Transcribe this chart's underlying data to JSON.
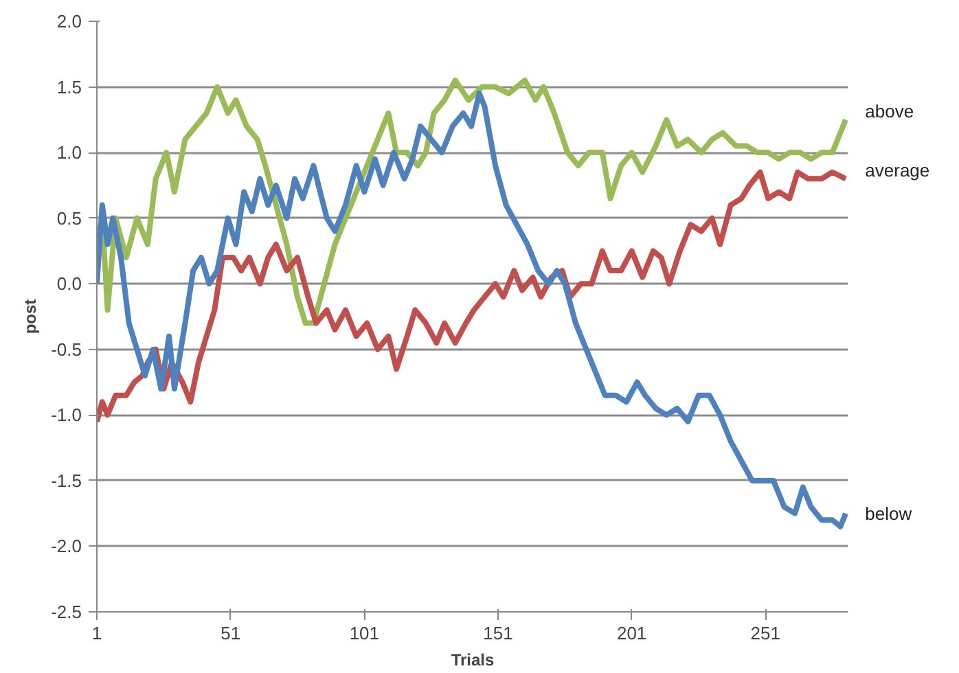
{
  "chart_data": {
    "type": "line",
    "xlabel": "Trials",
    "ylabel": "post",
    "xlim": [
      1,
      282
    ],
    "xticks": [
      1,
      51,
      101,
      151,
      201,
      251
    ],
    "ylim": [
      -2.5,
      2.0
    ],
    "yticks": [
      {
        "value": -2.5,
        "label": "-2.5"
      },
      {
        "value": -2.0,
        "label": "-2.0"
      },
      {
        "value": -1.5,
        "label": "-1.5"
      },
      {
        "value": -1.0,
        "label": "-1.0"
      },
      {
        "value": -0.5,
        "label": "-0.5"
      },
      {
        "value": 0.0,
        "label": "0.0"
      },
      {
        "value": 0.5,
        "label": "0.5"
      },
      {
        "value": 1.0,
        "label": "1.0"
      },
      {
        "value": 1.5,
        "label": "1.5"
      },
      {
        "value": 2.0,
        "label": "2.0"
      }
    ],
    "grid": "y",
    "legend": false,
    "marker": "none",
    "line_style": "solid",
    "series": [
      {
        "name": "above",
        "color": "#9bbb59",
        "x": [
          1,
          3,
          5,
          8,
          12,
          16,
          20,
          23,
          27,
          30,
          34,
          38,
          42,
          46,
          50,
          53,
          57,
          61,
          64,
          68,
          72,
          76,
          79,
          82,
          86,
          90,
          94,
          98,
          102,
          106,
          110,
          113,
          117,
          121,
          124,
          127,
          131,
          135,
          140,
          145,
          150,
          155,
          161,
          165,
          168,
          172,
          177,
          181,
          185,
          190,
          193,
          197,
          201,
          205,
          210,
          214,
          218,
          222,
          227,
          231,
          235,
          240,
          244,
          248,
          252,
          256,
          260,
          264,
          268,
          272,
          276,
          281
        ],
        "values": [
          0.3,
          0.5,
          -0.2,
          0.5,
          0.2,
          0.5,
          0.3,
          0.8,
          1.0,
          0.7,
          1.1,
          1.2,
          1.3,
          1.5,
          1.3,
          1.4,
          1.2,
          1.1,
          0.9,
          0.6,
          0.3,
          -0.1,
          -0.3,
          -0.3,
          0.0,
          0.3,
          0.5,
          0.7,
          0.9,
          1.1,
          1.3,
          1.0,
          1.0,
          0.9,
          1.0,
          1.3,
          1.4,
          1.55,
          1.4,
          1.5,
          1.5,
          1.45,
          1.55,
          1.4,
          1.5,
          1.3,
          1.0,
          0.9,
          1.0,
          1.0,
          0.65,
          0.9,
          1.0,
          0.85,
          1.05,
          1.25,
          1.05,
          1.1,
          1.0,
          1.1,
          1.15,
          1.05,
          1.05,
          1.0,
          1.0,
          0.95,
          1.0,
          1.0,
          0.95,
          1.0,
          1.0,
          1.25
        ]
      },
      {
        "name": "average",
        "color": "#c0504d",
        "x": [
          1,
          3,
          5,
          8,
          12,
          15,
          18,
          20,
          23,
          26,
          29,
          33,
          36,
          39,
          42,
          45,
          48,
          52,
          55,
          58,
          62,
          65,
          68,
          72,
          76,
          80,
          83,
          87,
          90,
          94,
          98,
          102,
          106,
          110,
          113,
          117,
          120,
          124,
          128,
          131,
          135,
          139,
          142,
          146,
          150,
          153,
          157,
          160,
          164,
          167,
          171,
          175,
          178,
          182,
          186,
          190,
          193,
          197,
          201,
          205,
          209,
          212,
          215,
          219,
          223,
          227,
          231,
          234,
          238,
          242,
          245,
          249,
          252,
          256,
          260,
          263,
          267,
          272,
          276,
          281
        ],
        "values": [
          -1.05,
          -0.9,
          -1.0,
          -0.85,
          -0.85,
          -0.75,
          -0.7,
          -0.6,
          -0.5,
          -0.8,
          -0.6,
          -0.75,
          -0.9,
          -0.6,
          -0.4,
          -0.2,
          0.2,
          0.2,
          0.1,
          0.2,
          0.0,
          0.2,
          0.3,
          0.1,
          0.2,
          -0.1,
          -0.3,
          -0.2,
          -0.35,
          -0.2,
          -0.4,
          -0.3,
          -0.5,
          -0.4,
          -0.65,
          -0.4,
          -0.2,
          -0.3,
          -0.45,
          -0.3,
          -0.45,
          -0.3,
          -0.2,
          -0.1,
          0.0,
          -0.1,
          0.1,
          -0.05,
          0.05,
          -0.1,
          0.05,
          0.1,
          -0.1,
          0.0,
          0.0,
          0.25,
          0.1,
          0.1,
          0.25,
          0.05,
          0.25,
          0.2,
          0.0,
          0.25,
          0.45,
          0.4,
          0.5,
          0.3,
          0.6,
          0.65,
          0.75,
          0.85,
          0.65,
          0.7,
          0.65,
          0.85,
          0.8,
          0.8,
          0.85,
          0.8
        ]
      },
      {
        "name": "below",
        "color": "#4f81bd",
        "x": [
          1,
          3,
          5,
          7,
          10,
          13,
          16,
          19,
          22,
          25,
          28,
          30,
          34,
          37,
          40,
          43,
          46,
          50,
          53,
          56,
          59,
          62,
          65,
          68,
          72,
          75,
          78,
          82,
          87,
          90,
          94,
          98,
          101,
          105,
          108,
          112,
          116,
          119,
          122,
          126,
          130,
          134,
          138,
          141,
          144,
          146,
          150,
          154,
          158,
          162,
          166,
          170,
          173,
          176,
          180,
          184,
          188,
          191,
          195,
          199,
          203,
          206,
          210,
          214,
          218,
          222,
          226,
          230,
          234,
          238,
          242,
          246,
          250,
          254,
          258,
          262,
          265,
          268,
          272,
          276,
          279,
          281
        ],
        "values": [
          0.0,
          0.6,
          0.3,
          0.5,
          0.2,
          -0.3,
          -0.5,
          -0.7,
          -0.5,
          -0.8,
          -0.4,
          -0.8,
          -0.3,
          0.1,
          0.2,
          0.0,
          0.1,
          0.5,
          0.3,
          0.7,
          0.55,
          0.8,
          0.6,
          0.75,
          0.5,
          0.8,
          0.65,
          0.9,
          0.5,
          0.4,
          0.6,
          0.9,
          0.7,
          0.95,
          0.75,
          1.0,
          0.8,
          0.95,
          1.2,
          1.1,
          1.0,
          1.2,
          1.3,
          1.2,
          1.45,
          1.35,
          0.9,
          0.6,
          0.45,
          0.3,
          0.1,
          0.0,
          0.1,
          0.0,
          -0.3,
          -0.5,
          -0.7,
          -0.85,
          -0.85,
          -0.9,
          -0.75,
          -0.85,
          -0.95,
          -1.0,
          -0.95,
          -1.05,
          -0.85,
          -0.85,
          -1.0,
          -1.2,
          -1.35,
          -1.5,
          -1.5,
          -1.5,
          -1.7,
          -1.75,
          -1.55,
          -1.7,
          -1.8,
          -1.8,
          -1.85,
          -1.75
        ]
      }
    ]
  }
}
